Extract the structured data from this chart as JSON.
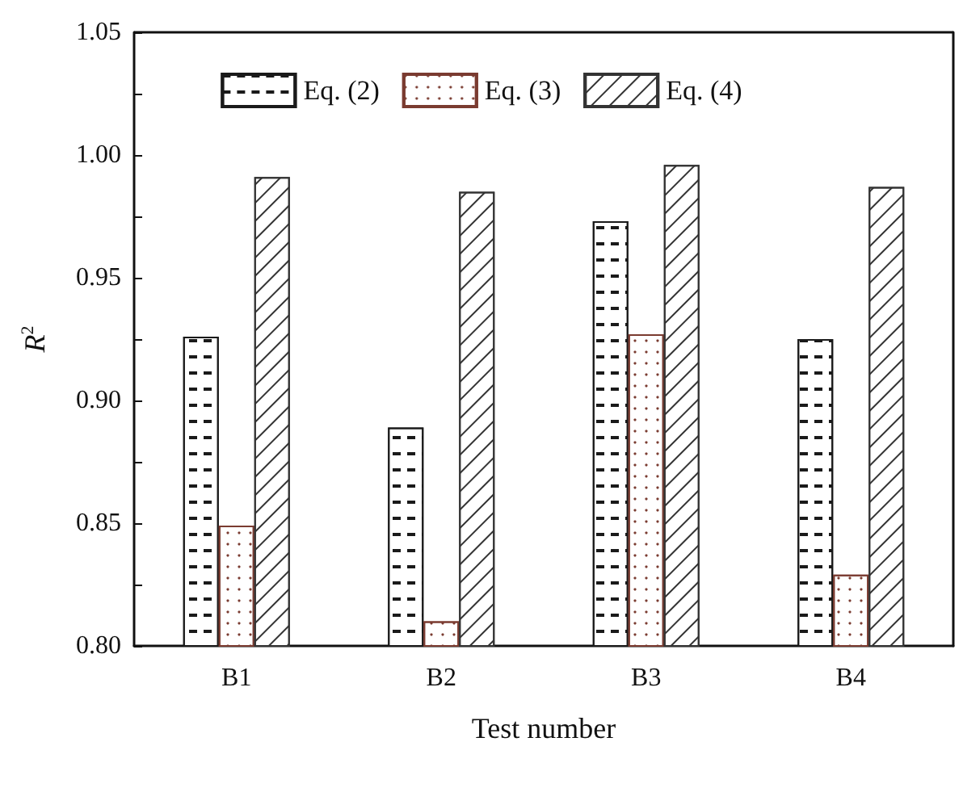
{
  "chart_data": {
    "type": "bar",
    "xlabel": "Test number",
    "ylabel": "R$^{2}$",
    "categories": [
      "B1",
      "B2",
      "B3",
      "B4"
    ],
    "series": [
      {
        "name": "Eq. (2)",
        "color": "#1a1a1a",
        "values": [
          0.926,
          0.889,
          0.973,
          0.925
        ]
      },
      {
        "name": "Eq. (3)",
        "color": "#7a3b30",
        "values": [
          0.849,
          0.81,
          0.927,
          0.829
        ]
      },
      {
        "name": "Eq. (4)",
        "color": "#333333",
        "values": [
          0.991,
          0.985,
          0.996,
          0.987
        ]
      }
    ],
    "ylim": [
      0.8,
      1.05
    ],
    "yticks": [
      {
        "value": 0.8,
        "label": "0.80"
      },
      {
        "value": 0.825,
        "label": null
      },
      {
        "value": 0.85,
        "label": "0.85"
      },
      {
        "value": 0.875,
        "label": null
      },
      {
        "value": 0.9,
        "label": "0.90"
      },
      {
        "value": 0.925,
        "label": null
      },
      {
        "value": 0.95,
        "label": "0.95"
      },
      {
        "value": 0.975,
        "label": null
      },
      {
        "value": 1.0,
        "label": "1.00"
      },
      {
        "value": 1.025,
        "label": null
      },
      {
        "value": 1.05,
        "label": "1.05"
      }
    ],
    "grid": false,
    "legend": "top"
  }
}
